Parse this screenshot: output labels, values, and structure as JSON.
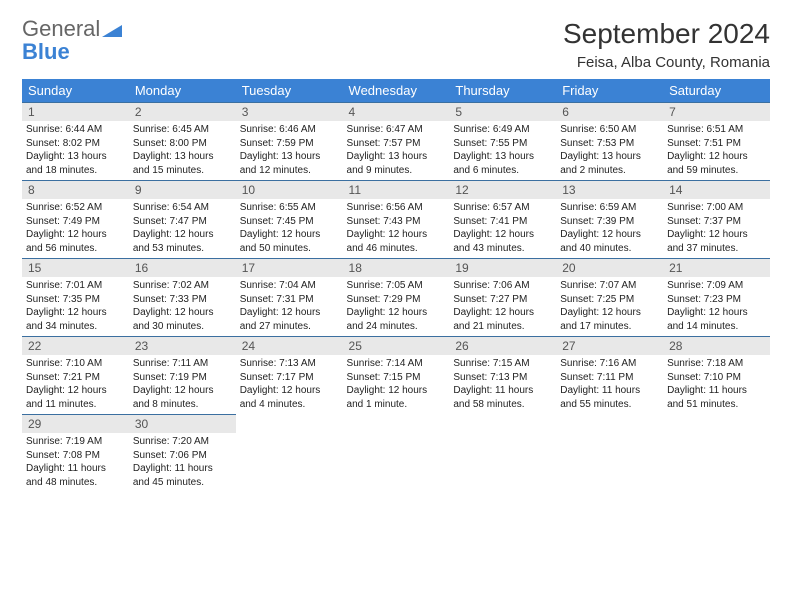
{
  "brand": {
    "general": "General",
    "blue": "Blue"
  },
  "header": {
    "month_title": "September 2024",
    "location": "Feisa, Alba County, Romania"
  },
  "colors": {
    "header_bg": "#3b82d4",
    "header_text": "#ffffff",
    "daynum_bg": "#e8e8e8",
    "daynum_text": "#555555",
    "rule": "#3b6fa0",
    "body_text": "#222222",
    "title_text": "#333333"
  },
  "dow": [
    "Sunday",
    "Monday",
    "Tuesday",
    "Wednesday",
    "Thursday",
    "Friday",
    "Saturday"
  ],
  "weeks": [
    [
      {
        "n": "1",
        "sr": "Sunrise: 6:44 AM",
        "ss": "Sunset: 8:02 PM",
        "d1": "Daylight: 13 hours",
        "d2": "and 18 minutes."
      },
      {
        "n": "2",
        "sr": "Sunrise: 6:45 AM",
        "ss": "Sunset: 8:00 PM",
        "d1": "Daylight: 13 hours",
        "d2": "and 15 minutes."
      },
      {
        "n": "3",
        "sr": "Sunrise: 6:46 AM",
        "ss": "Sunset: 7:59 PM",
        "d1": "Daylight: 13 hours",
        "d2": "and 12 minutes."
      },
      {
        "n": "4",
        "sr": "Sunrise: 6:47 AM",
        "ss": "Sunset: 7:57 PM",
        "d1": "Daylight: 13 hours",
        "d2": "and 9 minutes."
      },
      {
        "n": "5",
        "sr": "Sunrise: 6:49 AM",
        "ss": "Sunset: 7:55 PM",
        "d1": "Daylight: 13 hours",
        "d2": "and 6 minutes."
      },
      {
        "n": "6",
        "sr": "Sunrise: 6:50 AM",
        "ss": "Sunset: 7:53 PM",
        "d1": "Daylight: 13 hours",
        "d2": "and 2 minutes."
      },
      {
        "n": "7",
        "sr": "Sunrise: 6:51 AM",
        "ss": "Sunset: 7:51 PM",
        "d1": "Daylight: 12 hours",
        "d2": "and 59 minutes."
      }
    ],
    [
      {
        "n": "8",
        "sr": "Sunrise: 6:52 AM",
        "ss": "Sunset: 7:49 PM",
        "d1": "Daylight: 12 hours",
        "d2": "and 56 minutes."
      },
      {
        "n": "9",
        "sr": "Sunrise: 6:54 AM",
        "ss": "Sunset: 7:47 PM",
        "d1": "Daylight: 12 hours",
        "d2": "and 53 minutes."
      },
      {
        "n": "10",
        "sr": "Sunrise: 6:55 AM",
        "ss": "Sunset: 7:45 PM",
        "d1": "Daylight: 12 hours",
        "d2": "and 50 minutes."
      },
      {
        "n": "11",
        "sr": "Sunrise: 6:56 AM",
        "ss": "Sunset: 7:43 PM",
        "d1": "Daylight: 12 hours",
        "d2": "and 46 minutes."
      },
      {
        "n": "12",
        "sr": "Sunrise: 6:57 AM",
        "ss": "Sunset: 7:41 PM",
        "d1": "Daylight: 12 hours",
        "d2": "and 43 minutes."
      },
      {
        "n": "13",
        "sr": "Sunrise: 6:59 AM",
        "ss": "Sunset: 7:39 PM",
        "d1": "Daylight: 12 hours",
        "d2": "and 40 minutes."
      },
      {
        "n": "14",
        "sr": "Sunrise: 7:00 AM",
        "ss": "Sunset: 7:37 PM",
        "d1": "Daylight: 12 hours",
        "d2": "and 37 minutes."
      }
    ],
    [
      {
        "n": "15",
        "sr": "Sunrise: 7:01 AM",
        "ss": "Sunset: 7:35 PM",
        "d1": "Daylight: 12 hours",
        "d2": "and 34 minutes."
      },
      {
        "n": "16",
        "sr": "Sunrise: 7:02 AM",
        "ss": "Sunset: 7:33 PM",
        "d1": "Daylight: 12 hours",
        "d2": "and 30 minutes."
      },
      {
        "n": "17",
        "sr": "Sunrise: 7:04 AM",
        "ss": "Sunset: 7:31 PM",
        "d1": "Daylight: 12 hours",
        "d2": "and 27 minutes."
      },
      {
        "n": "18",
        "sr": "Sunrise: 7:05 AM",
        "ss": "Sunset: 7:29 PM",
        "d1": "Daylight: 12 hours",
        "d2": "and 24 minutes."
      },
      {
        "n": "19",
        "sr": "Sunrise: 7:06 AM",
        "ss": "Sunset: 7:27 PM",
        "d1": "Daylight: 12 hours",
        "d2": "and 21 minutes."
      },
      {
        "n": "20",
        "sr": "Sunrise: 7:07 AM",
        "ss": "Sunset: 7:25 PM",
        "d1": "Daylight: 12 hours",
        "d2": "and 17 minutes."
      },
      {
        "n": "21",
        "sr": "Sunrise: 7:09 AM",
        "ss": "Sunset: 7:23 PM",
        "d1": "Daylight: 12 hours",
        "d2": "and 14 minutes."
      }
    ],
    [
      {
        "n": "22",
        "sr": "Sunrise: 7:10 AM",
        "ss": "Sunset: 7:21 PM",
        "d1": "Daylight: 12 hours",
        "d2": "and 11 minutes."
      },
      {
        "n": "23",
        "sr": "Sunrise: 7:11 AM",
        "ss": "Sunset: 7:19 PM",
        "d1": "Daylight: 12 hours",
        "d2": "and 8 minutes."
      },
      {
        "n": "24",
        "sr": "Sunrise: 7:13 AM",
        "ss": "Sunset: 7:17 PM",
        "d1": "Daylight: 12 hours",
        "d2": "and 4 minutes."
      },
      {
        "n": "25",
        "sr": "Sunrise: 7:14 AM",
        "ss": "Sunset: 7:15 PM",
        "d1": "Daylight: 12 hours",
        "d2": "and 1 minute."
      },
      {
        "n": "26",
        "sr": "Sunrise: 7:15 AM",
        "ss": "Sunset: 7:13 PM",
        "d1": "Daylight: 11 hours",
        "d2": "and 58 minutes."
      },
      {
        "n": "27",
        "sr": "Sunrise: 7:16 AM",
        "ss": "Sunset: 7:11 PM",
        "d1": "Daylight: 11 hours",
        "d2": "and 55 minutes."
      },
      {
        "n": "28",
        "sr": "Sunrise: 7:18 AM",
        "ss": "Sunset: 7:10 PM",
        "d1": "Daylight: 11 hours",
        "d2": "and 51 minutes."
      }
    ],
    [
      {
        "n": "29",
        "sr": "Sunrise: 7:19 AM",
        "ss": "Sunset: 7:08 PM",
        "d1": "Daylight: 11 hours",
        "d2": "and 48 minutes."
      },
      {
        "n": "30",
        "sr": "Sunrise: 7:20 AM",
        "ss": "Sunset: 7:06 PM",
        "d1": "Daylight: 11 hours",
        "d2": "and 45 minutes."
      },
      null,
      null,
      null,
      null,
      null
    ]
  ]
}
